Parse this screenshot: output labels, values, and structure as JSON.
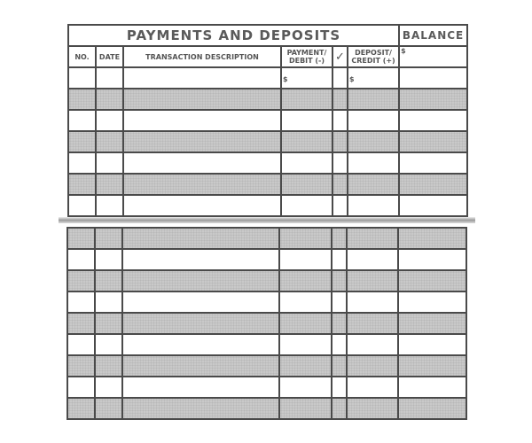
{
  "register": {
    "title": "PAYMENTS AND DEPOSITS",
    "balance_label": "BALANCE",
    "columns": {
      "no": "NO.",
      "date": "DATE",
      "description": "TRANSACTION DESCRIPTION",
      "payment_line1": "PAYMENT/",
      "payment_line2": "DEBIT (-)",
      "check": "✓",
      "deposit_line1": "DEPOSIT/",
      "deposit_line2": "CREDIT (+)"
    },
    "currency_symbol": "$"
  },
  "top_rows": [
    "white",
    "gray",
    "white",
    "gray",
    "white",
    "gray",
    "white"
  ],
  "bottom_rows": [
    "gray",
    "white",
    "gray",
    "white",
    "gray",
    "white",
    "gray",
    "white",
    "gray"
  ],
  "colors": {
    "shading": "#c9c9c9",
    "lines": "#4a4a4a"
  }
}
